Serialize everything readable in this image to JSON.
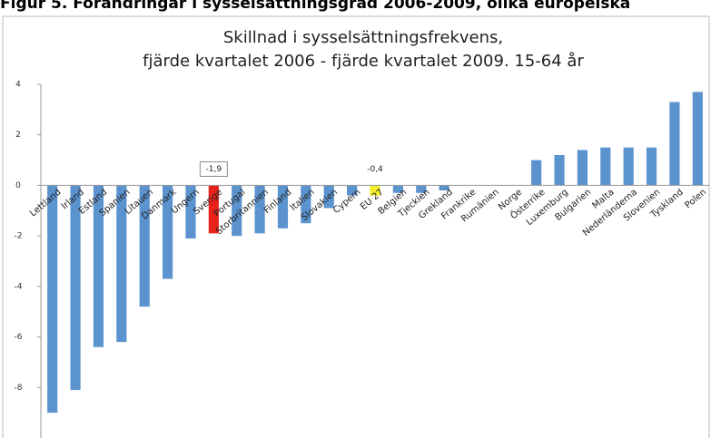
{
  "figure_caption": "Figur 5. Förändringar i sysselsättningsgrad 2006-2009, olika europeiska",
  "chart_data": {
    "type": "bar",
    "title": [
      "Skillnad i sysselsättningsfrekvens,",
      "fjärde kvartalet 2006 - fjärde kvartalet 2009. 15-64 år"
    ],
    "categories": [
      "Lettland",
      "Irland",
      "Estland",
      "Spanien",
      "Litauen",
      "Danmark",
      "Ungern",
      "Sverige",
      "Portugal",
      "Storbritannien",
      "Finland",
      "Italien",
      "Slovakien",
      "Cypern",
      "EU 27",
      "Belgien",
      "Tjeckien",
      "Grekland",
      "Frankrike",
      "Rumänien",
      "Norge",
      "Österrike",
      "Luxemburg",
      "Bulgarien",
      "Malta",
      "Nederländerna",
      "Slovenien",
      "Tyskland",
      "Polen"
    ],
    "values": [
      -9.0,
      -8.1,
      -6.4,
      -6.2,
      -4.8,
      -3.7,
      -2.1,
      -1.9,
      -2.0,
      -1.9,
      -1.7,
      -1.5,
      -0.9,
      -0.4,
      -0.4,
      -0.3,
      -0.3,
      -0.2,
      0,
      0,
      0,
      1.0,
      1.2,
      1.4,
      1.5,
      1.5,
      1.5,
      3.3,
      3.7
    ],
    "value_labels": [
      null,
      null,
      null,
      null,
      null,
      null,
      null,
      "-1,9",
      null,
      null,
      null,
      null,
      null,
      null,
      "-0,4",
      null,
      null,
      null,
      null,
      null,
      null,
      null,
      null,
      null,
      null,
      null,
      null,
      null,
      null
    ],
    "colors": [
      "#5b93cf",
      "#5b93cf",
      "#5b93cf",
      "#5b93cf",
      "#5b93cf",
      "#5b93cf",
      "#5b93cf",
      "#e8231b",
      "#5b93cf",
      "#5b93cf",
      "#5b93cf",
      "#5b93cf",
      "#5b93cf",
      "#5b93cf",
      "#f5ee2a",
      "#5b93cf",
      "#5b93cf",
      "#5b93cf",
      "#5b93cf",
      "#5b93cf",
      "#5b93cf",
      "#5b93cf",
      "#5b93cf",
      "#5b93cf",
      "#5b93cf",
      "#5b93cf",
      "#5b93cf",
      "#5b93cf",
      "#5b93cf"
    ],
    "ylim": [
      -10,
      4
    ],
    "yticks": [
      4,
      2,
      0,
      -2,
      -4,
      -6,
      -8
    ]
  }
}
